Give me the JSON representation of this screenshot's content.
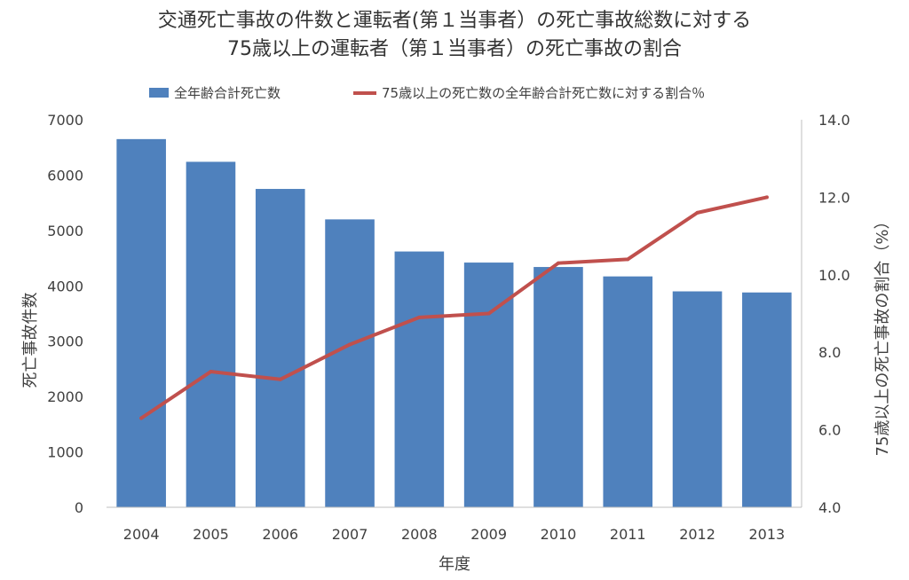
{
  "chart_data": {
    "type": "bar",
    "title_line1": "交通死亡事故の件数と運転者(第１当事者）の死亡事故総数に対する",
    "title_line2": "75歳以上の運転者（第１当事者）の死亡事故の割合",
    "xlabel": "年度",
    "ylabel_left": "死亡事故件数",
    "ylabel_right": "75歳以上の死亡事故の割合（%）",
    "categories": [
      "2004",
      "2005",
      "2006",
      "2007",
      "2008",
      "2009",
      "2010",
      "2011",
      "2012",
      "2013"
    ],
    "series": [
      {
        "name": "全年齢合計死亡数",
        "type": "bar",
        "axis": "left",
        "color": "#4f81bd",
        "values": [
          6650,
          6240,
          5750,
          5200,
          4620,
          4420,
          4340,
          4170,
          3900,
          3880
        ]
      },
      {
        "name": "75歳以上の死亡数の全年齢合計死亡数に対する割合％",
        "type": "line",
        "axis": "right",
        "color": "#c0504d",
        "values": [
          6.3,
          7.5,
          7.3,
          8.2,
          8.9,
          9.0,
          10.3,
          10.4,
          11.6,
          12.0
        ]
      }
    ],
    "ylim_left": [
      0,
      7000
    ],
    "yticks_left": [
      "0",
      "1000",
      "2000",
      "3000",
      "4000",
      "5000",
      "6000",
      "7000"
    ],
    "ylim_right": [
      4.0,
      14.0
    ],
    "yticks_right": [
      "4.0",
      "6.0",
      "8.0",
      "10.0",
      "12.0",
      "14.0"
    ],
    "grid": false,
    "legend_position": "top"
  }
}
